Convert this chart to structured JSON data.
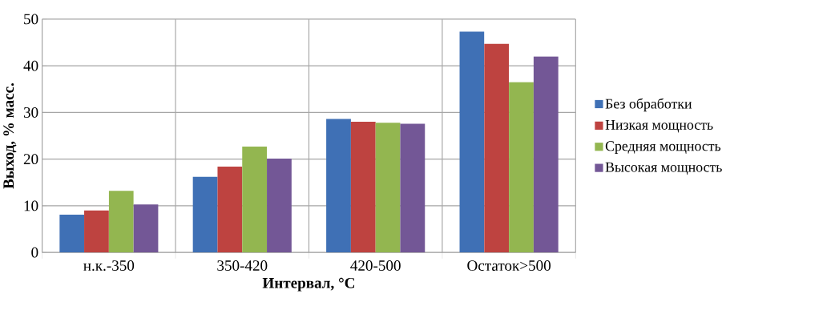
{
  "chart_data": {
    "type": "bar",
    "xlabel": "Интервал, °C",
    "ylabel": "Выход, % масс.",
    "categories": [
      "н.к.-350",
      "350-420",
      "420-500",
      "Остаток>500"
    ],
    "series": [
      {
        "name": "Без обработки",
        "color": "#3f70b5",
        "values": [
          8.1,
          16.2,
          28.6,
          47.3
        ]
      },
      {
        "name": "Низкая мощность",
        "color": "#be4340",
        "values": [
          9.0,
          18.4,
          28.0,
          44.7
        ]
      },
      {
        "name": "Средняя мощность",
        "color": "#93b650",
        "values": [
          13.2,
          22.7,
          27.8,
          36.5
        ]
      },
      {
        "name": "Высокая мощность",
        "color": "#735796",
        "values": [
          10.3,
          20.1,
          27.6,
          42.0
        ]
      }
    ],
    "ylim": [
      0,
      50
    ],
    "yticks": [
      0,
      10,
      20,
      30,
      40,
      50
    ],
    "grid": true,
    "legend": "right"
  }
}
